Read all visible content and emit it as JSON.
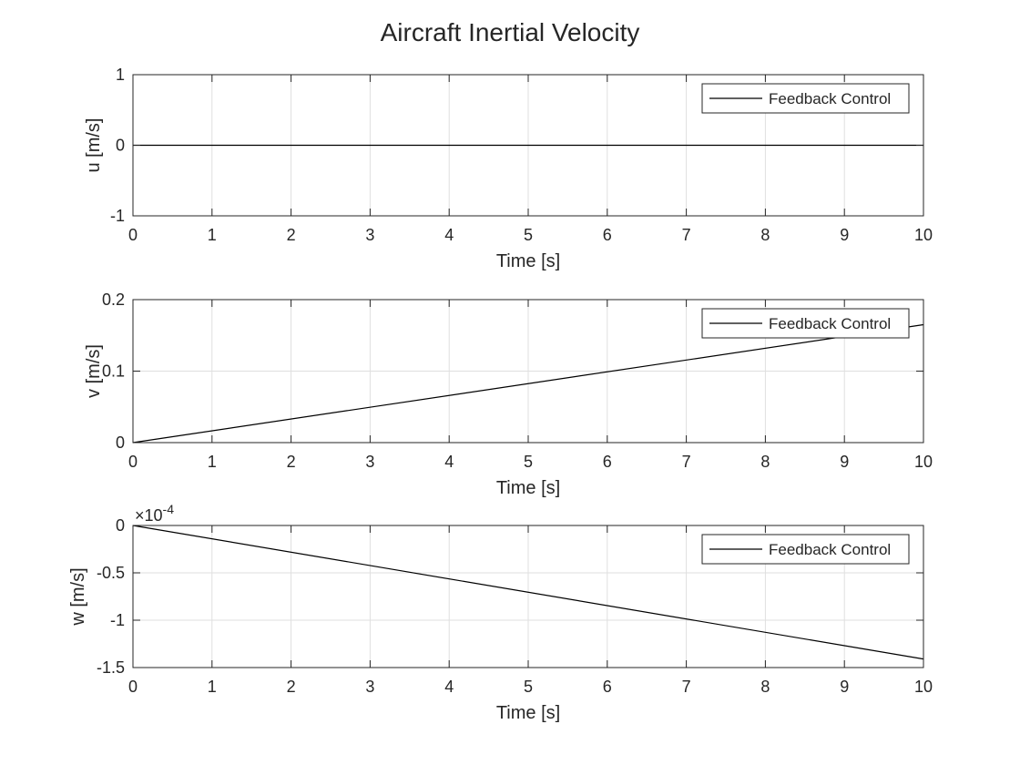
{
  "figure": {
    "title": "Aircraft Inertial Velocity",
    "colors": {
      "background": "#ffffff",
      "axes_background": "#ffffff",
      "axis_line": "#262626",
      "grid": "#dfdfdf",
      "series": "#000000",
      "text": "#262626"
    }
  },
  "chart_data": [
    {
      "type": "line",
      "xlabel": "Time [s]",
      "ylabel": "u [m/s]",
      "xlim": [
        0,
        10
      ],
      "ylim": [
        -1,
        1
      ],
      "x_ticks": [
        0,
        1,
        2,
        3,
        4,
        5,
        6,
        7,
        8,
        9,
        10
      ],
      "y_ticks": [
        -1,
        0,
        1
      ],
      "y_tick_labels": [
        "-1",
        "0",
        "1"
      ],
      "grid": true,
      "legend": {
        "entries": [
          "Feedback Control"
        ],
        "placement": "top-right"
      },
      "series": [
        {
          "name": "Feedback Control",
          "x": [
            0,
            10
          ],
          "y": [
            0,
            0
          ]
        }
      ]
    },
    {
      "type": "line",
      "xlabel": "Time [s]",
      "ylabel": "v [m/s]",
      "xlim": [
        0,
        10
      ],
      "ylim": [
        0,
        0.2
      ],
      "x_ticks": [
        0,
        1,
        2,
        3,
        4,
        5,
        6,
        7,
        8,
        9,
        10
      ],
      "y_ticks": [
        0,
        0.1,
        0.2
      ],
      "y_tick_labels": [
        "0",
        "0.1",
        "0.2"
      ],
      "grid": true,
      "legend": {
        "entries": [
          "Feedback Control"
        ],
        "placement": "top-right"
      },
      "series": [
        {
          "name": "Feedback Control",
          "x": [
            0,
            10
          ],
          "y": [
            0,
            0.165
          ]
        }
      ]
    },
    {
      "type": "line",
      "xlabel": "Time [s]",
      "ylabel": "w [m/s]",
      "xlim": [
        0,
        10
      ],
      "ylim": [
        -1.5,
        0
      ],
      "x_ticks": [
        0,
        1,
        2,
        3,
        4,
        5,
        6,
        7,
        8,
        9,
        10
      ],
      "y_ticks": [
        -1.5,
        -1,
        -0.5,
        0
      ],
      "y_tick_labels": [
        "-1.5",
        "-1",
        "-0.5",
        "0"
      ],
      "y_exponent_base": "×10",
      "y_exponent_power": "-4",
      "grid": true,
      "legend": {
        "entries": [
          "Feedback Control"
        ],
        "placement": "top-right"
      },
      "series": [
        {
          "name": "Feedback Control",
          "x": [
            0,
            10
          ],
          "y": [
            0,
            -1.41
          ]
        }
      ]
    }
  ]
}
